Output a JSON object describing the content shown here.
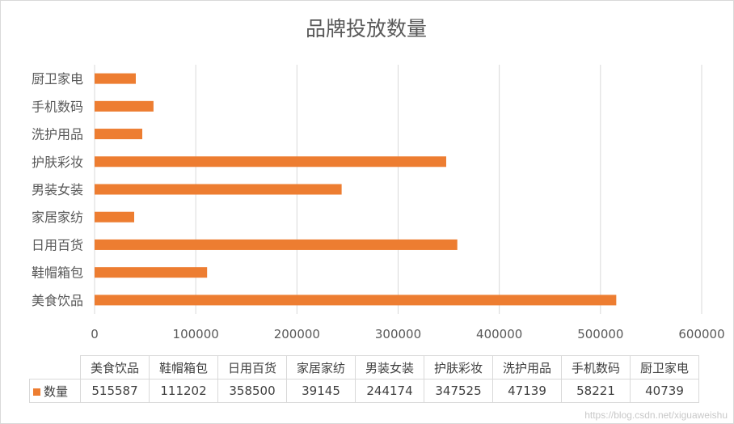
{
  "chart_data": {
    "type": "bar",
    "orientation": "horizontal",
    "title": "品牌投放数量",
    "categories": [
      "美食饮品",
      "鞋帽箱包",
      "日用百货",
      "家居家纺",
      "男装女装",
      "护肤彩妆",
      "洗护用品",
      "手机数码",
      "厨卫家电"
    ],
    "series": [
      {
        "name": "数量",
        "values": [
          515587,
          111202,
          358500,
          39145,
          244174,
          347525,
          47139,
          58221,
          40739
        ],
        "value_labels": [
          "515587",
          "111202",
          "358500",
          "39145",
          "244174",
          "347525",
          "47139",
          "58221",
          "40739"
        ]
      }
    ],
    "xlim": [
      0,
      600000
    ],
    "x_ticks": [
      "0",
      "100000",
      "200000",
      "300000",
      "400000",
      "500000",
      "600000"
    ],
    "grid": true,
    "legend": "data-table",
    "bar_color": "#ED7D31",
    "grid_color": "#D9D9D9"
  },
  "watermark": "https://blog.csdn.net/xiguaweishu"
}
